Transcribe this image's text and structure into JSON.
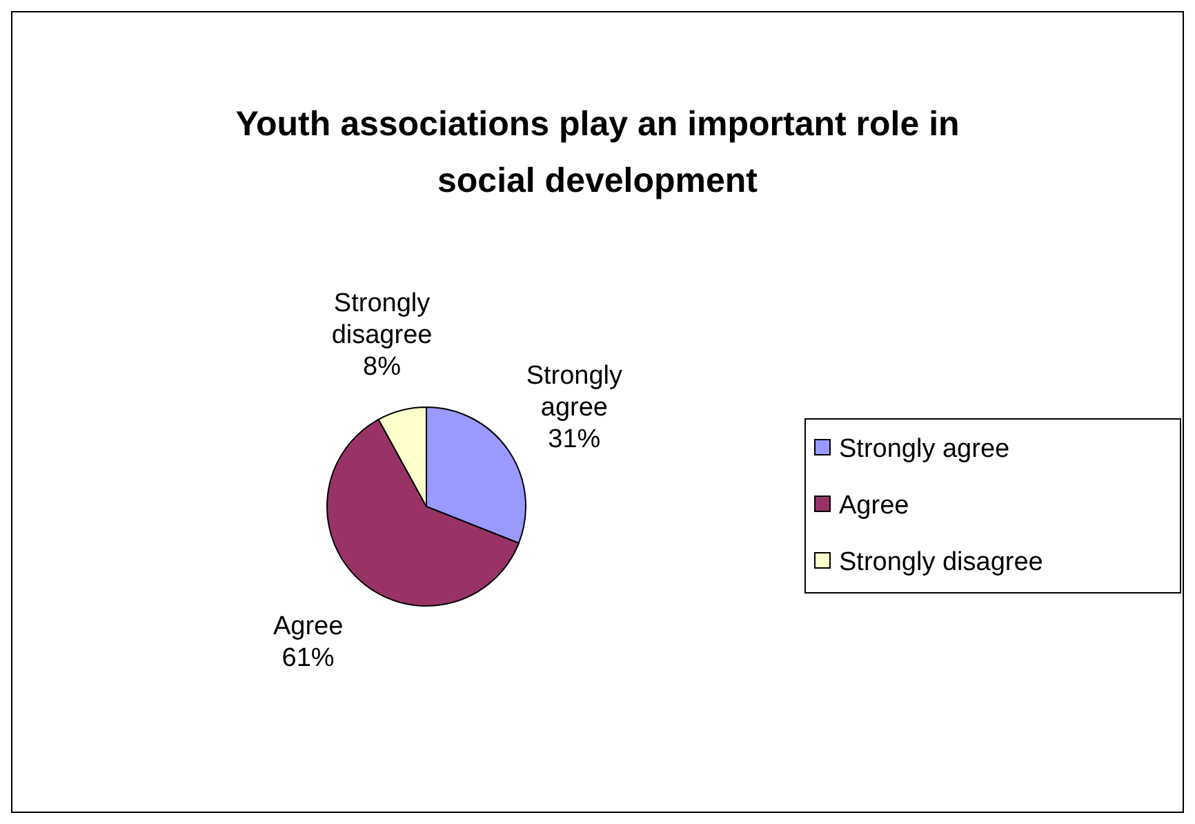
{
  "chart_data": {
    "type": "pie",
    "title": "Youth associations play an important role in social development",
    "categories": [
      "Strongly agree",
      "Agree",
      "Strongly disagree"
    ],
    "values": [
      31,
      61,
      8
    ],
    "colors": [
      "#9999ff",
      "#993366",
      "#ffffcc"
    ],
    "value_labels": [
      "31%",
      "61%",
      "8%"
    ],
    "legend": "right"
  }
}
